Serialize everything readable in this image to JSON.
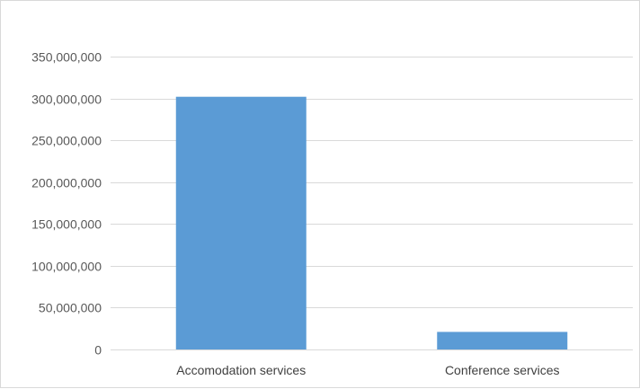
{
  "chart_data": {
    "type": "bar",
    "categories": [
      "Accomodation services",
      "Conference services"
    ],
    "values": [
      302000000,
      21000000
    ],
    "ylim": [
      0,
      350000000
    ],
    "ytick_values": [
      0,
      50000000,
      100000000,
      150000000,
      200000000,
      250000000,
      300000000,
      350000000
    ],
    "ytick_labels": [
      "0",
      "50,000,000",
      "100,000,000",
      "150,000,000",
      "200,000,000",
      "250,000,000",
      "300,000,000",
      "350,000,000"
    ],
    "grid": true,
    "legend": "none",
    "bar_color": "#5b9bd5",
    "grid_color": "#d9d9d9"
  }
}
